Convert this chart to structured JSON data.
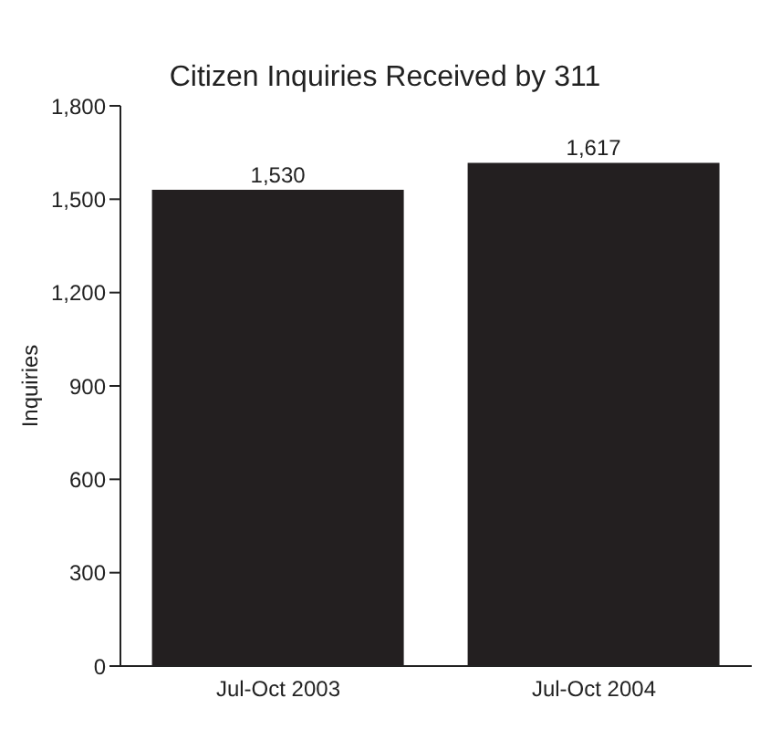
{
  "chart_data": {
    "type": "bar",
    "title": "Citizen Inquiries Received by 311",
    "ylabel": "Inquiries",
    "categories": [
      "Jul-Oct 2003",
      "Jul-Oct 2004"
    ],
    "values": [
      1530,
      1617
    ],
    "value_labels": [
      "1,530",
      "1,617"
    ],
    "color": "#231f20",
    "ylim": [
      0,
      1800
    ],
    "yticks": [
      {
        "value": 0,
        "label": "0"
      },
      {
        "value": 300,
        "label": "300"
      },
      {
        "value": 600,
        "label": "600"
      },
      {
        "value": 900,
        "label": "900"
      },
      {
        "value": 1200,
        "label": "1,200"
      },
      {
        "value": 1500,
        "label": "1,500"
      },
      {
        "value": 1800,
        "label": "1,800"
      }
    ],
    "grid": false
  }
}
